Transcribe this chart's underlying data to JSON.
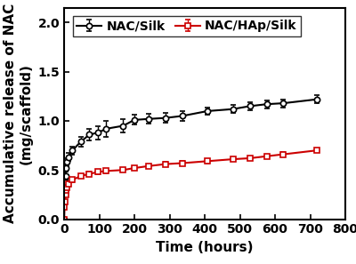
{
  "nac_silk_x": [
    0,
    1,
    2,
    4,
    6,
    8,
    12,
    24,
    48,
    72,
    96,
    120,
    168,
    200,
    240,
    288,
    336,
    408,
    480,
    528,
    576,
    624,
    720
  ],
  "nac_silk_y": [
    0.0,
    0.28,
    0.38,
    0.44,
    0.52,
    0.58,
    0.63,
    0.7,
    0.79,
    0.86,
    0.88,
    0.92,
    0.95,
    1.01,
    1.02,
    1.03,
    1.05,
    1.1,
    1.12,
    1.15,
    1.17,
    1.18,
    1.22
  ],
  "nac_silk_err": [
    0.0,
    0.03,
    0.04,
    0.04,
    0.04,
    0.04,
    0.04,
    0.04,
    0.05,
    0.06,
    0.07,
    0.08,
    0.07,
    0.05,
    0.05,
    0.05,
    0.05,
    0.04,
    0.04,
    0.04,
    0.04,
    0.04,
    0.04
  ],
  "nac_hap_silk_x": [
    0,
    1,
    2,
    4,
    6,
    8,
    12,
    24,
    48,
    72,
    96,
    120,
    168,
    200,
    240,
    288,
    336,
    408,
    480,
    528,
    576,
    624,
    720
  ],
  "nac_hap_silk_y": [
    0.0,
    0.12,
    0.18,
    0.25,
    0.29,
    0.32,
    0.36,
    0.4,
    0.44,
    0.46,
    0.48,
    0.49,
    0.5,
    0.52,
    0.54,
    0.56,
    0.57,
    0.59,
    0.61,
    0.62,
    0.64,
    0.66,
    0.7
  ],
  "nac_hap_silk_err": [
    0.0,
    0.01,
    0.01,
    0.02,
    0.02,
    0.02,
    0.02,
    0.02,
    0.02,
    0.02,
    0.02,
    0.02,
    0.02,
    0.02,
    0.02,
    0.02,
    0.02,
    0.02,
    0.02,
    0.02,
    0.02,
    0.02,
    0.02
  ],
  "silk_color": "#000000",
  "hap_color": "#cc0000",
  "xlabel": "Time (hours)",
  "ylabel_line1": "Accumulative release of NAC",
  "ylabel_line2": "(mg/scaffold)",
  "xlim": [
    0,
    775
  ],
  "ylim": [
    0.0,
    2.15
  ],
  "yticks": [
    0.0,
    0.5,
    1.0,
    1.5,
    2.0
  ],
  "xticks": [
    0,
    100,
    200,
    300,
    400,
    500,
    600,
    700,
    800
  ],
  "legend_silk": "NAC/Silk",
  "legend_hap": "NAC/HAp/Silk",
  "axis_fontsize": 11,
  "tick_fontsize": 10,
  "legend_fontsize": 10
}
